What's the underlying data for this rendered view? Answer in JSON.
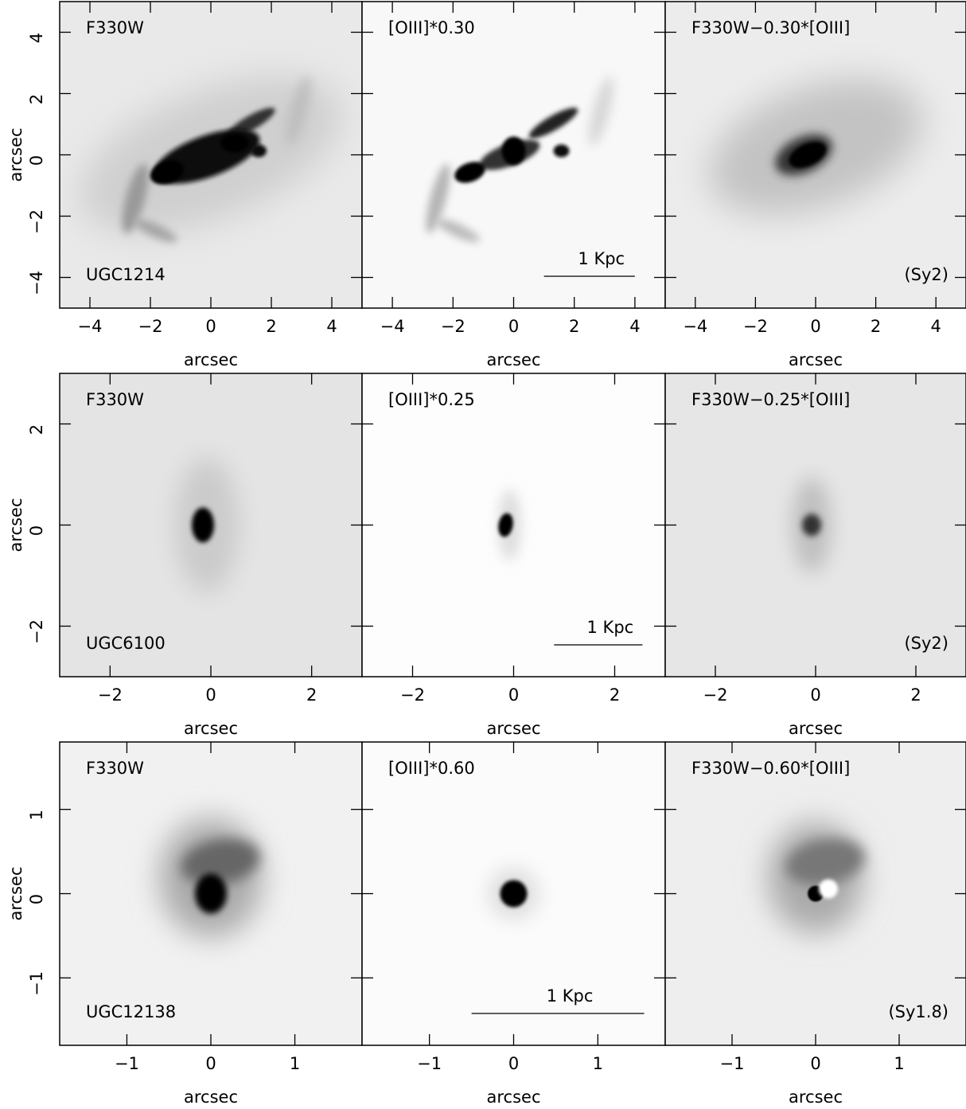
{
  "chart_data": [
    {
      "type": "image",
      "title": "F330W",
      "xlabel": "arcsec",
      "ylabel": "arcsec",
      "name": "UGC1214",
      "xlim": [
        -5,
        5
      ],
      "xticks": [
        {
          "value": -4,
          "label": "−4"
        },
        {
          "value": -2,
          "label": "−2"
        },
        0,
        2,
        4
      ],
      "ylim": [
        -5,
        5
      ],
      "yticks": [
        {
          "value": -4,
          "label": "−4"
        },
        {
          "value": -2,
          "label": "−2"
        },
        0,
        2,
        4
      ]
    },
    {
      "type": "image",
      "title": "[OIII]*0.30",
      "xlabel": "arcsec",
      "scalebar": {
        "label": "1 Kpc",
        "x": [
          1,
          4
        ]
      },
      "xlim": [
        -5,
        5
      ],
      "xticks": [
        {
          "value": -4,
          "label": "−4"
        },
        {
          "value": -2,
          "label": "−2"
        },
        0,
        2,
        4
      ],
      "ylim": [
        -5,
        5
      ],
      "yticks": [
        -4,
        -2,
        0,
        2,
        4
      ]
    },
    {
      "type": "image",
      "title": "F330W−0.30*[OIII]",
      "xlabel": "arcsec",
      "class": "(Sy2)",
      "xlim": [
        -5,
        5
      ],
      "xticks": [
        {
          "value": -4,
          "label": "−4"
        },
        {
          "value": -2,
          "label": "−2"
        },
        0,
        2,
        4
      ],
      "ylim": [
        -5,
        5
      ],
      "yticks": [
        -4,
        -2,
        0,
        2,
        4
      ]
    },
    {
      "type": "image",
      "title": "F330W",
      "xlabel": "arcsec",
      "ylabel": "arcsec",
      "name": "UGC6100",
      "xlim": [
        -3,
        3
      ],
      "xticks": [
        {
          "value": -2,
          "label": "−2"
        },
        0,
        2
      ],
      "ylim": [
        -3,
        3
      ],
      "yticks": [
        {
          "value": -2,
          "label": "−2"
        },
        0,
        2
      ]
    },
    {
      "type": "image",
      "title": "[OIII]*0.25",
      "xlabel": "arcsec",
      "scalebar": {
        "label": "1 Kpc",
        "x": [
          0.8,
          2.55
        ]
      },
      "xlim": [
        -3,
        3
      ],
      "xticks": [
        {
          "value": -2,
          "label": "−2"
        },
        0,
        2
      ],
      "ylim": [
        -3,
        3
      ],
      "yticks": [
        -2,
        0,
        2
      ]
    },
    {
      "type": "image",
      "title": "F330W−0.25*[OIII]",
      "xlabel": "arcsec",
      "class": "(Sy2)",
      "xlim": [
        -3,
        3
      ],
      "xticks": [
        {
          "value": -2,
          "label": "−2"
        },
        0,
        2
      ],
      "ylim": [
        -3,
        3
      ],
      "yticks": [
        -2,
        0,
        2
      ]
    },
    {
      "type": "image",
      "title": "F330W",
      "xlabel": "arcsec",
      "ylabel": "arcsec",
      "name": "UGC12138",
      "xlim": [
        -1.8,
        1.8
      ],
      "xticks": [
        {
          "value": -1,
          "label": "−1"
        },
        0,
        1
      ],
      "ylim": [
        -1.8,
        1.8
      ],
      "yticks": [
        {
          "value": -1,
          "label": "−1"
        },
        0,
        1
      ]
    },
    {
      "type": "image",
      "title": "[OIII]*0.60",
      "xlabel": "arcsec",
      "scalebar": {
        "label": "1 Kpc",
        "x": [
          -0.5,
          1.55
        ]
      },
      "xlim": [
        -1.8,
        1.8
      ],
      "xticks": [
        {
          "value": -1,
          "label": "−1"
        },
        0,
        1
      ],
      "ylim": [
        -1.8,
        1.8
      ],
      "yticks": [
        -1,
        0,
        1
      ]
    },
    {
      "type": "image",
      "title": "F330W−0.60*[OIII]",
      "xlabel": "arcsec",
      "class": "(Sy1.8)",
      "xlim": [
        -1.8,
        1.8
      ],
      "xticks": [
        {
          "value": -1,
          "label": "−1"
        },
        0,
        1
      ],
      "ylim": [
        -1.8,
        1.8
      ],
      "yticks": [
        -1,
        0,
        1
      ]
    }
  ]
}
